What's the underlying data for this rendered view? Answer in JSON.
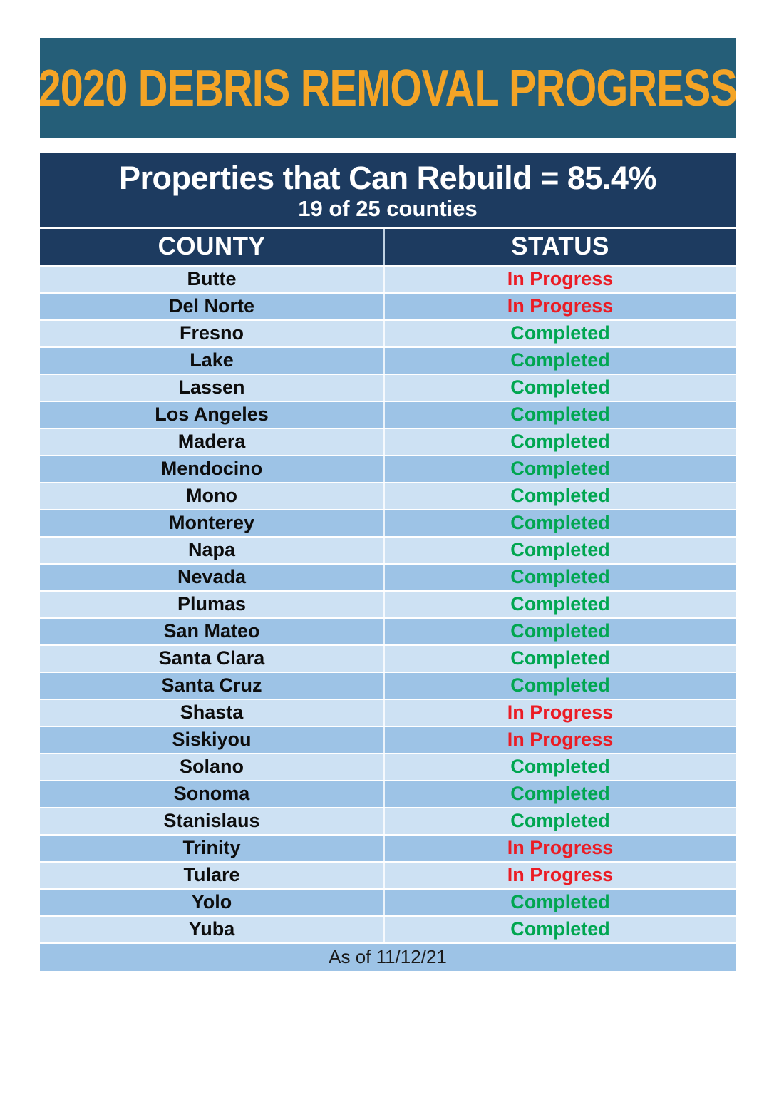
{
  "banner": {
    "title": "2020 DEBRIS REMOVAL PROGRESS"
  },
  "summary": {
    "headline": "Properties that Can Rebuild = 85.4%",
    "subheadline": "19 of 25 counties"
  },
  "table": {
    "columns": {
      "county": "COUNTY",
      "status": "STATUS"
    },
    "rows": [
      {
        "county": "Butte",
        "status": "In Progress"
      },
      {
        "county": "Del Norte",
        "status": "In Progress"
      },
      {
        "county": "Fresno",
        "status": "Completed"
      },
      {
        "county": "Lake",
        "status": "Completed"
      },
      {
        "county": "Lassen",
        "status": "Completed"
      },
      {
        "county": "Los Angeles",
        "status": "Completed"
      },
      {
        "county": "Madera",
        "status": "Completed"
      },
      {
        "county": "Mendocino",
        "status": "Completed"
      },
      {
        "county": "Mono",
        "status": "Completed"
      },
      {
        "county": "Monterey",
        "status": "Completed"
      },
      {
        "county": "Napa",
        "status": "Completed"
      },
      {
        "county": "Nevada",
        "status": "Completed"
      },
      {
        "county": "Plumas",
        "status": "Completed"
      },
      {
        "county": "San Mateo",
        "status": "Completed"
      },
      {
        "county": "Santa Clara",
        "status": "Completed"
      },
      {
        "county": "Santa Cruz",
        "status": "Completed"
      },
      {
        "county": "Shasta",
        "status": "In Progress"
      },
      {
        "county": "Siskiyou",
        "status": "In Progress"
      },
      {
        "county": "Solano",
        "status": "Completed"
      },
      {
        "county": "Sonoma",
        "status": "Completed"
      },
      {
        "county": "Stanislaus",
        "status": "Completed"
      },
      {
        "county": "Trinity",
        "status": "In Progress"
      },
      {
        "county": "Tulare",
        "status": "In Progress"
      },
      {
        "county": "Yolo",
        "status": "Completed"
      },
      {
        "county": "Yuba",
        "status": "Completed"
      }
    ],
    "footer": "As of 11/12/21"
  },
  "colors": {
    "banner_bg": "#255E78",
    "banner_text": "#F4A426",
    "summary_bg": "#1D3B60",
    "row_light": "#CDE1F3",
    "row_medium": "#9DC3E6",
    "status_completed": "#00A650",
    "status_in_progress": "#EB1C24"
  }
}
